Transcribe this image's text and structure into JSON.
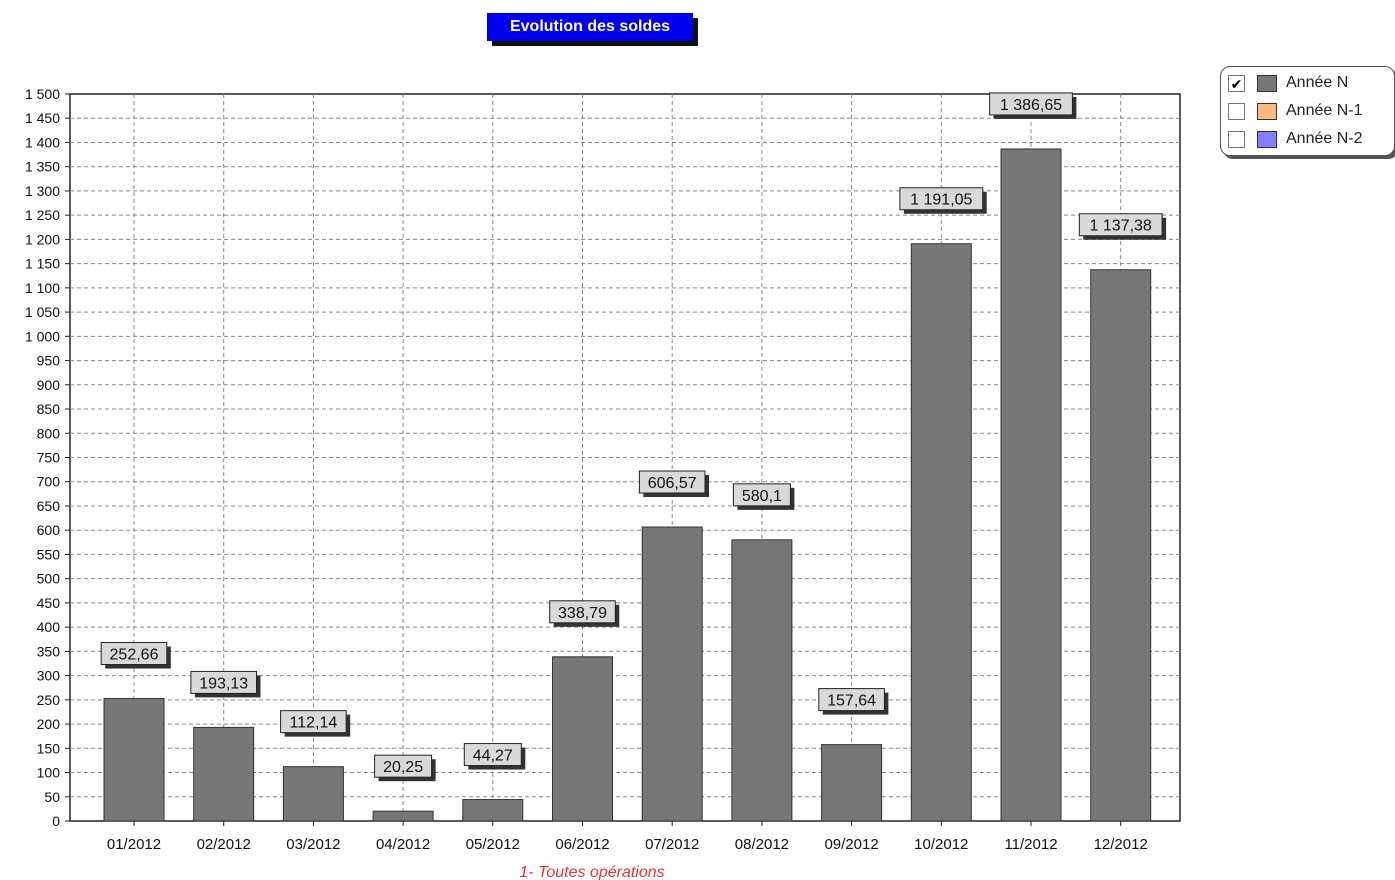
{
  "chart_data": {
    "type": "bar",
    "title": "Evolution des soldes",
    "subtitle": "1- Toutes opérations",
    "categories": [
      "01/2012",
      "02/2012",
      "03/2012",
      "04/2012",
      "05/2012",
      "06/2012",
      "07/2012",
      "08/2012",
      "09/2012",
      "10/2012",
      "11/2012",
      "12/2012"
    ],
    "series": [
      {
        "name": "Année N",
        "values": [
          252.66,
          193.13,
          112.14,
          20.25,
          44.27,
          338.79,
          606.57,
          580.1,
          157.64,
          1191.05,
          1386.65,
          1137.38
        ]
      }
    ],
    "value_labels": [
      "252,66",
      "193,13",
      "112,14",
      "20,25",
      "44,27",
      "338,79",
      "606,57",
      "580,1",
      "157,64",
      "1 191,05",
      "1 386,65",
      "1 137,38"
    ],
    "ylim": [
      0,
      1500
    ],
    "ytick_step": 50,
    "grid": true,
    "legend_position": "top-right",
    "bar_color": "#777777"
  },
  "legend": [
    {
      "label": "Année N",
      "checked": true,
      "color": "#777777"
    },
    {
      "label": "Année N-1",
      "checked": false,
      "color": "#ffb97a"
    },
    {
      "label": "Année N-2",
      "checked": false,
      "color": "#7f7fff"
    }
  ],
  "check_mark": "✔"
}
